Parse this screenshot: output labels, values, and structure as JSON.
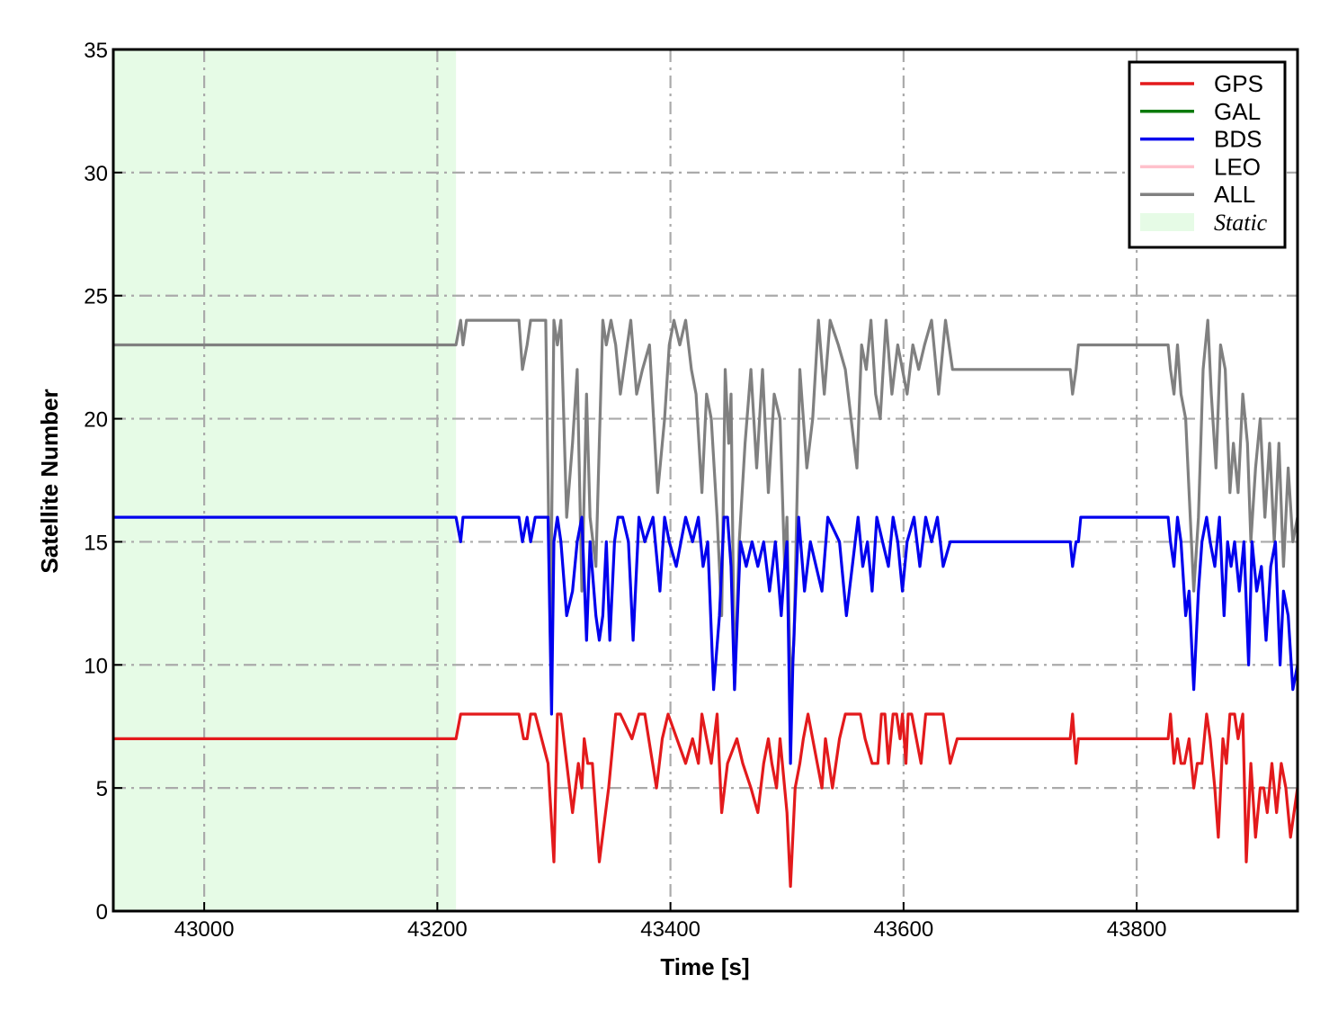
{
  "chart_data": {
    "type": "line",
    "title": "",
    "xlabel": "Time [s]",
    "ylabel": "Satellite Number",
    "xlim": [
      42922,
      43938
    ],
    "ylim": [
      0,
      35
    ],
    "xticks": [
      43000,
      43200,
      43400,
      43600,
      43800
    ],
    "yticks": [
      0,
      5,
      10,
      15,
      20,
      25,
      30,
      35
    ],
    "grid": true,
    "legend_position": "top-right",
    "static_region": {
      "label": "Static",
      "x_start": 42922,
      "x_end": 43216,
      "color": "#e6fbe6"
    },
    "series": [
      {
        "name": "GPS",
        "color": "#e31a1c",
        "x": [
          42922,
          43216,
          43220,
          43270,
          43274,
          43277,
          43280,
          43284,
          43295,
          43300,
          43303,
          43306,
          43316,
          43321,
          43324,
          43326,
          43329,
          43333,
          43339,
          43347,
          43353,
          43357,
          43367,
          43373,
          43378,
          43388,
          43393,
          43398,
          43413,
          43419,
          43424,
          43427,
          43431,
          43435,
          43440,
          43444,
          43449,
          43457,
          43462,
          43469,
          43475,
          43480,
          43484,
          43487,
          43491,
          43494,
          43500,
          43503,
          43507,
          43511,
          43514,
          43518,
          43526,
          43530,
          43533,
          43536,
          43539,
          43545,
          43550,
          43554,
          43558,
          43563,
          43567,
          43573,
          43578,
          43581,
          43584,
          43587,
          43591,
          43594,
          43597,
          43599,
          43602,
          43604,
          43607,
          43611,
          43615,
          43619,
          43624,
          43629,
          43634,
          43640,
          43646,
          43743,
          43745,
          43748,
          43750,
          43752,
          43827,
          43829,
          43832,
          43835,
          43838,
          43841,
          43845,
          43849,
          43852,
          43856,
          43860,
          43863,
          43867,
          43870,
          43874,
          43877,
          43880,
          43884,
          43887,
          43891,
          43894,
          43898,
          43902,
          43906,
          43909,
          43912,
          43916,
          43920,
          43924,
          43928,
          43932,
          43938
        ],
        "y": [
          7,
          7,
          8,
          8,
          7,
          7,
          8,
          8,
          6,
          2,
          8,
          8,
          4,
          6,
          5,
          7,
          6,
          6,
          2,
          5,
          8,
          8,
          7,
          8,
          8,
          5,
          7,
          8,
          6,
          7,
          6,
          8,
          7,
          6,
          8,
          4,
          6,
          7,
          6,
          5,
          4,
          6,
          7,
          6,
          5,
          7,
          4,
          1,
          5,
          6,
          7,
          8,
          6,
          5,
          7,
          6,
          5,
          7,
          8,
          8,
          8,
          8,
          7,
          6,
          6,
          8,
          8,
          6,
          8,
          8,
          7,
          8,
          6,
          8,
          8,
          7,
          6,
          8,
          8,
          8,
          8,
          6,
          7,
          7,
          8,
          6,
          7,
          7,
          7,
          8,
          6,
          7,
          6,
          6,
          7,
          5,
          6,
          6,
          8,
          7,
          5,
          3,
          7,
          6,
          8,
          8,
          7,
          8,
          2,
          6,
          3,
          5,
          5,
          4,
          6,
          4,
          6,
          5,
          3,
          5
        ]
      },
      {
        "name": "GAL",
        "color": "#0a7a0a",
        "x": [],
        "y": []
      },
      {
        "name": "BDS",
        "color": "#0000ee",
        "x": [
          42922,
          43216,
          43220,
          43222,
          43225,
          43270,
          43273,
          43277,
          43280,
          43284,
          43295,
          43298,
          43300,
          43303,
          43306,
          43311,
          43316,
          43320,
          43324,
          43328,
          43331,
          43336,
          43339,
          43342,
          43345,
          43348,
          43352,
          43355,
          43359,
          43364,
          43368,
          43373,
          43378,
          43385,
          43391,
          43395,
          43399,
          43405,
          43413,
          43419,
          43424,
          43428,
          43432,
          43437,
          43442,
          43446,
          43449,
          43452,
          43455,
          43460,
          43465,
          43470,
          43475,
          43480,
          43485,
          43490,
          43495,
          43498,
          43500,
          43503,
          43505,
          43510,
          43515,
          43520,
          43525,
          43530,
          43535,
          43545,
          43551,
          43556,
          43561,
          43565,
          43569,
          43573,
          43577,
          43582,
          43587,
          43591,
          43595,
          43599,
          43603,
          43609,
          43614,
          43619,
          43624,
          43629,
          43634,
          43640,
          43646,
          43743,
          43745,
          43748,
          43750,
          43752,
          43827,
          43829,
          43832,
          43835,
          43838,
          43842,
          43845,
          43849,
          43853,
          43856,
          43860,
          43863,
          43867,
          43871,
          43875,
          43878,
          43881,
          43884,
          43888,
          43892,
          43896,
          43899,
          43903,
          43907,
          43911,
          43915,
          43919,
          43923,
          43926,
          43930,
          43934,
          43938
        ],
        "y": [
          16,
          16,
          15,
          16,
          16,
          16,
          15,
          16,
          15,
          16,
          16,
          8,
          15,
          16,
          15,
          12,
          13,
          15,
          16,
          11,
          15,
          12,
          11,
          12,
          15,
          11,
          15,
          16,
          16,
          15,
          11,
          16,
          15,
          16,
          13,
          16,
          15,
          14,
          16,
          15,
          16,
          14,
          15,
          9,
          12,
          16,
          16,
          14,
          9,
          15,
          14,
          15,
          14,
          15,
          13,
          15,
          12,
          14,
          15,
          6,
          10,
          16,
          13,
          15,
          14,
          13,
          16,
          15,
          12,
          14,
          16,
          14,
          15,
          13,
          16,
          15,
          14,
          16,
          15,
          13,
          15,
          16,
          14,
          16,
          15,
          16,
          14,
          15,
          15,
          15,
          14,
          15,
          15,
          16,
          16,
          15,
          14,
          16,
          15,
          12,
          13,
          9,
          13,
          15,
          16,
          15,
          14,
          16,
          12,
          15,
          14,
          15,
          13,
          15,
          10,
          15,
          13,
          14,
          11,
          14,
          15,
          10,
          13,
          12,
          9,
          10
        ]
      },
      {
        "name": "LEO",
        "color": "#ffc0cb",
        "x": [],
        "y": []
      },
      {
        "name": "ALL",
        "color": "#808080",
        "x": [
          42922,
          43216,
          43220,
          43222,
          43225,
          43270,
          43273,
          43277,
          43280,
          43284,
          43293,
          43297,
          43300,
          43303,
          43306,
          43311,
          43316,
          43320,
          43324,
          43328,
          43331,
          43336,
          43339,
          43342,
          43345,
          43349,
          43353,
          43357,
          43366,
          43371,
          43376,
          43382,
          43389,
          43395,
          43399,
          43403,
          43408,
          43413,
          43418,
          43422,
          43427,
          43431,
          43435,
          43440,
          43444,
          43447,
          43450,
          43452,
          43455,
          43459,
          43464,
          43469,
          43474,
          43479,
          43484,
          43489,
          43494,
          43498,
          43500,
          43503,
          43506,
          43511,
          43517,
          43522,
          43527,
          43532,
          43537,
          43544,
          43550,
          43555,
          43560,
          43564,
          43568,
          43572,
          43576,
          43580,
          43585,
          43590,
          43595,
          43599,
          43603,
          43608,
          43613,
          43618,
          43624,
          43630,
          43636,
          43642,
          43646,
          43743,
          43745,
          43748,
          43750,
          43752,
          43827,
          43829,
          43832,
          43835,
          43838,
          43842,
          43845,
          43849,
          43853,
          43857,
          43861,
          43864,
          43868,
          43872,
          43876,
          43880,
          43883,
          43887,
          43891,
          43895,
          43898,
          43902,
          43906,
          43910,
          43914,
          43918,
          43922,
          43926,
          43930,
          43934,
          43938
        ],
        "y": [
          23,
          23,
          24,
          23,
          24,
          24,
          22,
          23,
          24,
          24,
          24,
          11,
          24,
          23,
          24,
          16,
          19,
          22,
          13,
          21,
          16,
          14,
          19,
          24,
          23,
          24,
          23,
          21,
          24,
          21,
          22,
          23,
          17,
          20,
          23,
          24,
          23,
          24,
          22,
          21,
          17,
          21,
          20,
          16,
          12,
          22,
          19,
          21,
          9,
          15,
          19,
          22,
          18,
          22,
          17,
          21,
          20,
          14,
          16,
          9,
          11,
          22,
          18,
          20,
          24,
          21,
          24,
          23,
          22,
          20,
          18,
          23,
          22,
          24,
          21,
          20,
          24,
          21,
          23,
          22,
          21,
          23,
          22,
          23,
          24,
          21,
          24,
          22,
          22,
          22,
          21,
          22,
          23,
          23,
          23,
          22,
          21,
          23,
          21,
          20,
          17,
          13,
          16,
          22,
          24,
          21,
          18,
          23,
          22,
          17,
          19,
          17,
          21,
          19,
          15,
          18,
          20,
          16,
          19,
          15,
          19,
          14,
          18,
          15,
          16
        ]
      }
    ]
  }
}
